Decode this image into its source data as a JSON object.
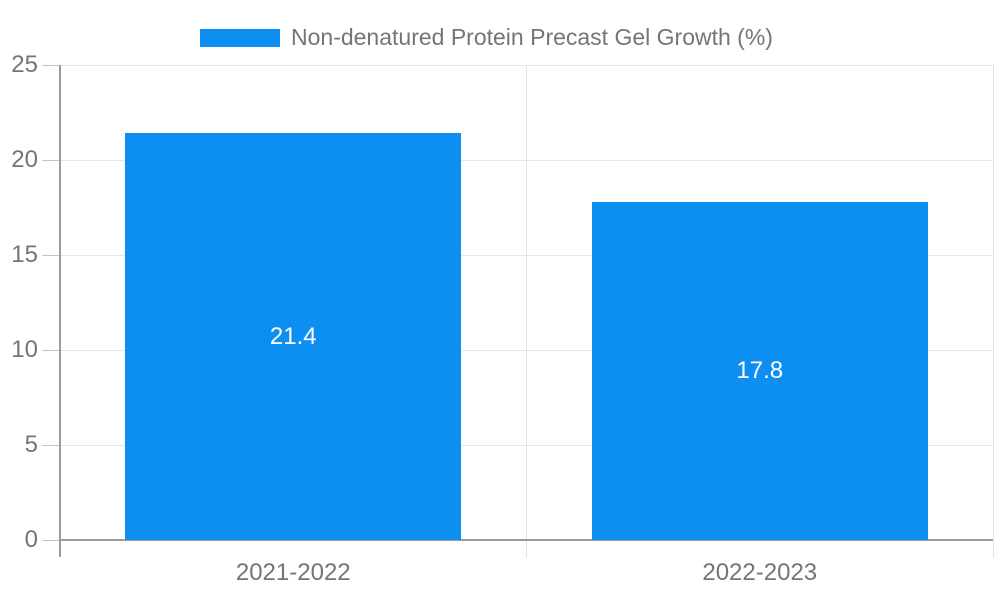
{
  "legend": {
    "label": "Non-denatured Protein Precast Gel Growth (%)"
  },
  "colors": {
    "bar": "#0d8ff2",
    "axis": "#9b9b9b",
    "grid": "#e6e6e6",
    "boundary": "#e3e3e3",
    "tick": "#c4c4c4",
    "text": "#757575",
    "value_label": "#ffffff"
  },
  "chart_data": {
    "type": "bar",
    "title": "Non-denatured Protein Precast Gel Growth (%)",
    "categories": [
      "2021-2022",
      "2022-2023"
    ],
    "values": [
      21.4,
      17.8
    ],
    "data_labels": [
      "21.4",
      "17.8"
    ],
    "series": [
      {
        "name": "Non-denatured Protein Precast Gel Growth (%)",
        "values": [
          21.4,
          17.8
        ]
      }
    ],
    "xlabel": "",
    "ylabel": "",
    "ylim": [
      0,
      25
    ],
    "yticks": [
      0,
      5,
      10,
      15,
      20,
      25
    ],
    "grid": true,
    "legend_position": "top",
    "bar_color": "#0d8ff2",
    "data_label_position": "inside-center"
  }
}
